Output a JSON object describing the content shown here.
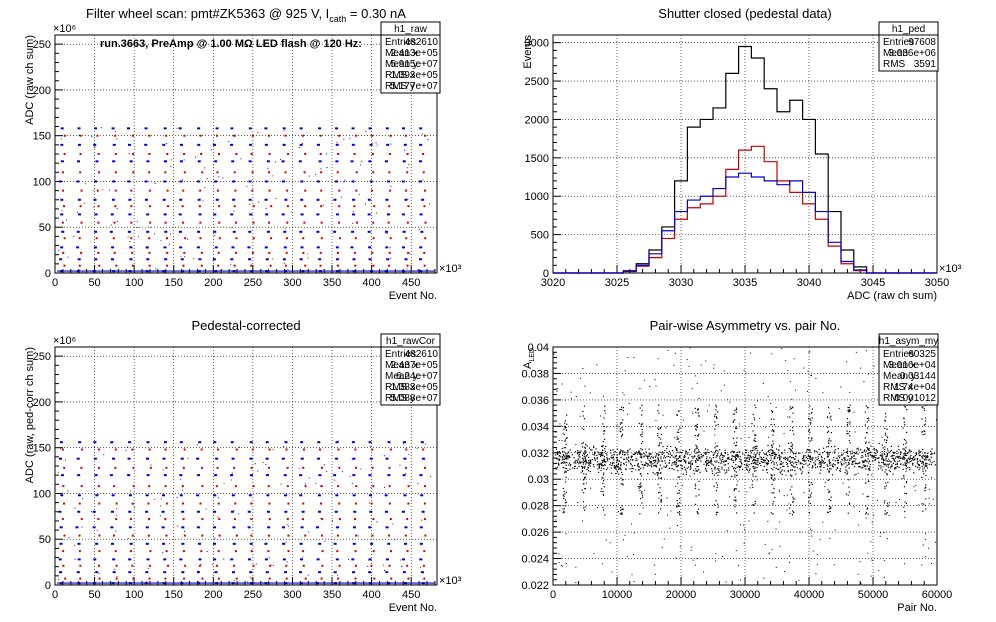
{
  "chart_data": [
    {
      "type": "scatter",
      "title": "Filter wheel scan: pmt#ZK5363 @   925 V, I",
      "title_sub": "cath",
      "title_tail": " = 0.30 nA",
      "annotation": "run.3663, PreAmp @ 1.00 MΩ LED flash @  120 Hz:",
      "xlabel": "Event No.",
      "ylabel": "ADC (raw ch sum)",
      "x_multiplier": "×10³",
      "y_multiplier": "×10⁶",
      "xlim": [
        0,
        482.61
      ],
      "ylim": [
        0,
        260
      ],
      "xticks": [
        "0",
        "50",
        "100",
        "150",
        "200",
        "250",
        "300",
        "350",
        "400",
        "450"
      ],
      "yticks": [
        "0",
        "50",
        "100",
        "150",
        "200",
        "250"
      ],
      "grid": true,
      "levels_blue": [
        2,
        15,
        28,
        45,
        64,
        80,
        100,
        122,
        140,
        158
      ],
      "levels_red": [
        8,
        22,
        38,
        55,
        73,
        90,
        110,
        130,
        150
      ],
      "stats": {
        "name": "h1_raw",
        "rows": [
          [
            "Entries",
            "482610"
          ],
          [
            "Mean x",
            "2.413e+05"
          ],
          [
            "Mean y",
            "5.915e+07"
          ],
          [
            "RMS x",
            "1.393e+05"
          ],
          [
            "RMS y",
            "5.177e+07"
          ]
        ]
      }
    },
    {
      "type": "histogram",
      "title": "Shutter closed (pedestal data)",
      "xlabel": "ADC (raw ch sum)",
      "ylabel": "Events",
      "x_multiplier": "×10³",
      "xlim": [
        3020,
        3050
      ],
      "ylim": [
        0,
        3100
      ],
      "xticks": [
        "3020",
        "3025",
        "3030",
        "3035",
        "3040",
        "3045",
        "3050"
      ],
      "yticks": [
        "0",
        "500",
        "1000",
        "1500",
        "2000",
        "2500",
        "3000"
      ],
      "grid": true,
      "series": [
        {
          "color": "#000000",
          "x": [
            3025,
            3026,
            3027,
            3028,
            3029,
            3030,
            3031,
            3032,
            3033,
            3034,
            3035,
            3036,
            3037,
            3038,
            3039,
            3040,
            3041,
            3042,
            3043,
            3044,
            3045
          ],
          "values": [
            0,
            30,
            120,
            300,
            600,
            1200,
            1900,
            2000,
            2150,
            2600,
            2950,
            2800,
            2400,
            2100,
            2250,
            2000,
            1550,
            800,
            300,
            80,
            0
          ]
        },
        {
          "color": "#cc0000",
          "x": [
            3025,
            3026,
            3027,
            3028,
            3029,
            3030,
            3031,
            3032,
            3033,
            3034,
            3035,
            3036,
            3037,
            3038,
            3039,
            3040,
            3041,
            3042,
            3043,
            3044,
            3045
          ],
          "values": [
            0,
            20,
            90,
            200,
            450,
            700,
            850,
            900,
            1000,
            1350,
            1600,
            1650,
            1450,
            1200,
            1050,
            900,
            700,
            350,
            120,
            30,
            0
          ]
        },
        {
          "color": "#0000cc",
          "x": [
            3025,
            3026,
            3027,
            3028,
            3029,
            3030,
            3031,
            3032,
            3033,
            3034,
            3035,
            3036,
            3037,
            3038,
            3039,
            3040,
            3041,
            3042,
            3043,
            3044,
            3045
          ],
          "values": [
            0,
            25,
            100,
            250,
            550,
            800,
            950,
            1000,
            1100,
            1250,
            1300,
            1250,
            1200,
            1150,
            1200,
            1050,
            800,
            400,
            150,
            40,
            0
          ]
        }
      ],
      "stats": {
        "name": "h1_ped",
        "rows": [
          [
            "Entries",
            "97608"
          ],
          [
            "Mean",
            "3.036e+06"
          ],
          [
            "RMS",
            "3591"
          ]
        ]
      }
    },
    {
      "type": "scatter",
      "title": "Pedestal-corrected",
      "xlabel": "Event No.",
      "ylabel": "ADC (raw, ped-corr ch sum)",
      "x_multiplier": "×10³",
      "y_multiplier": "×10⁶",
      "xlim": [
        0,
        482.61
      ],
      "ylim": [
        0,
        260
      ],
      "xticks": [
        "0",
        "50",
        "100",
        "150",
        "200",
        "250",
        "300",
        "350",
        "400",
        "450"
      ],
      "yticks": [
        "0",
        "50",
        "100",
        "150",
        "200",
        "250"
      ],
      "grid": true,
      "levels_blue": [
        2,
        14,
        28,
        45,
        63,
        80,
        98,
        120,
        138,
        156
      ],
      "levels_red": [
        7,
        21,
        37,
        54,
        72,
        89,
        108,
        128,
        148
      ],
      "stats": {
        "name": "h1_rawCor",
        "rows": [
          [
            "Entries",
            "482610"
          ],
          [
            "Mean x",
            "2.437e+05"
          ],
          [
            "Mean y",
            "6.24e+07"
          ],
          [
            "RMS x",
            "1.383e+05"
          ],
          [
            "RMS y",
            "5.088e+07"
          ]
        ]
      }
    },
    {
      "type": "scatter",
      "title": "Pair-wise Asymmetry vs. pair No.",
      "xlabel": "Pair No.",
      "ylabel": "A",
      "ylabel_sub": "LED",
      "xlim": [
        0,
        60000
      ],
      "ylim": [
        0.022,
        0.04
      ],
      "xticks": [
        "0",
        "10000",
        "20000",
        "30000",
        "40000",
        "50000",
        "60000"
      ],
      "yticks": [
        "0.022",
        "0.024",
        "0.026",
        "0.028",
        "0.03",
        "0.032",
        "0.034",
        "0.036",
        "0.038",
        "0.04"
      ],
      "grid": true,
      "band_center": 0.0315,
      "band_width": 0.0006,
      "stats": {
        "name": "h1_asym_my",
        "rows": [
          [
            "Entries",
            "60325"
          ],
          [
            "Mean x",
            "3.016e+04"
          ],
          [
            "Mean y",
            "0.03144"
          ],
          [
            "RMS x",
            "1.74e+04"
          ],
          [
            "RMS y",
            "0.001012"
          ]
        ]
      }
    }
  ]
}
